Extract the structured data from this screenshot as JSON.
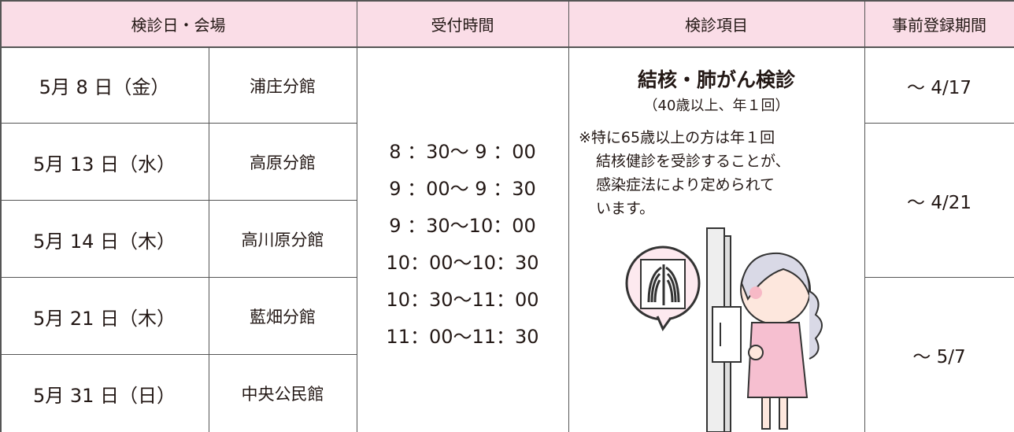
{
  "table": {
    "header": [
      "検診日・会場",
      "受付時間",
      "検診項目",
      "事前登録期間"
    ],
    "rows": [
      {
        "date": "5月 8 日（金）",
        "venue": "浦庄分館"
      },
      {
        "date": "5月 13 日（水）",
        "venue": "高原分館"
      },
      {
        "date": "5月 14 日（木）",
        "venue": "高川原分館"
      },
      {
        "date": "5月 21 日（木）",
        "venue": "藍畑分館"
      },
      {
        "date": "5月 31 日（日）",
        "venue": "中央公民館"
      }
    ],
    "times": [
      "8 ：30～ 9 ：00",
      "9 ：00～ 9 ：30",
      "9 ：30～10：00",
      "10：00～10：30",
      "10：30～11：00",
      "11：00～11：30"
    ],
    "item": {
      "title": "結核・肺がん検診",
      "subtitle": "（40歳以上、年１回）",
      "note": [
        "※特に65歳以上の方は年１回",
        "結核健診を受診することが、",
        "感染症法により定められて",
        "います。"
      ]
    },
    "registration": [
      "～ 4/17",
      "～ 4/21",
      "～ 5/7"
    ]
  }
}
